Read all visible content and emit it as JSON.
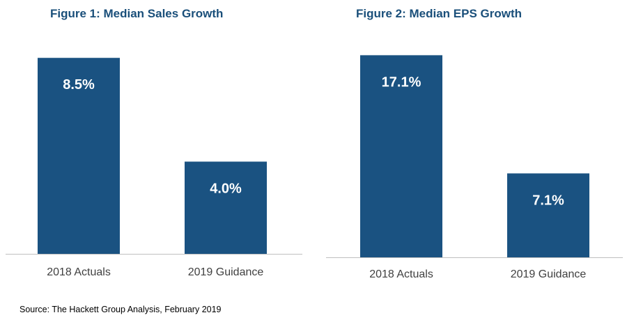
{
  "accent_color": "#1a5281",
  "title_color": "#1a4f7a",
  "chart_data": [
    {
      "type": "bar",
      "title": "Figure 1: Median Sales Growth",
      "categories": [
        "2018 Actuals",
        "2019 Guidance"
      ],
      "values": [
        8.5,
        4.0
      ],
      "value_labels": [
        "8.5%",
        "4.0%"
      ],
      "xlabel": "",
      "ylabel": "",
      "ylim": [
        0,
        9.2
      ],
      "grid": false
    },
    {
      "type": "bar",
      "title": "Figure 2: Median EPS Growth",
      "categories": [
        "2018 Actuals",
        "2019 Guidance"
      ],
      "values": [
        17.1,
        7.1
      ],
      "value_labels": [
        "17.1%",
        "7.1%"
      ],
      "xlabel": "",
      "ylabel": "",
      "ylim": [
        0,
        18.3
      ],
      "grid": false
    }
  ],
  "footer": {
    "source": "Source: The Hackett Group Analysis, February 2019"
  }
}
